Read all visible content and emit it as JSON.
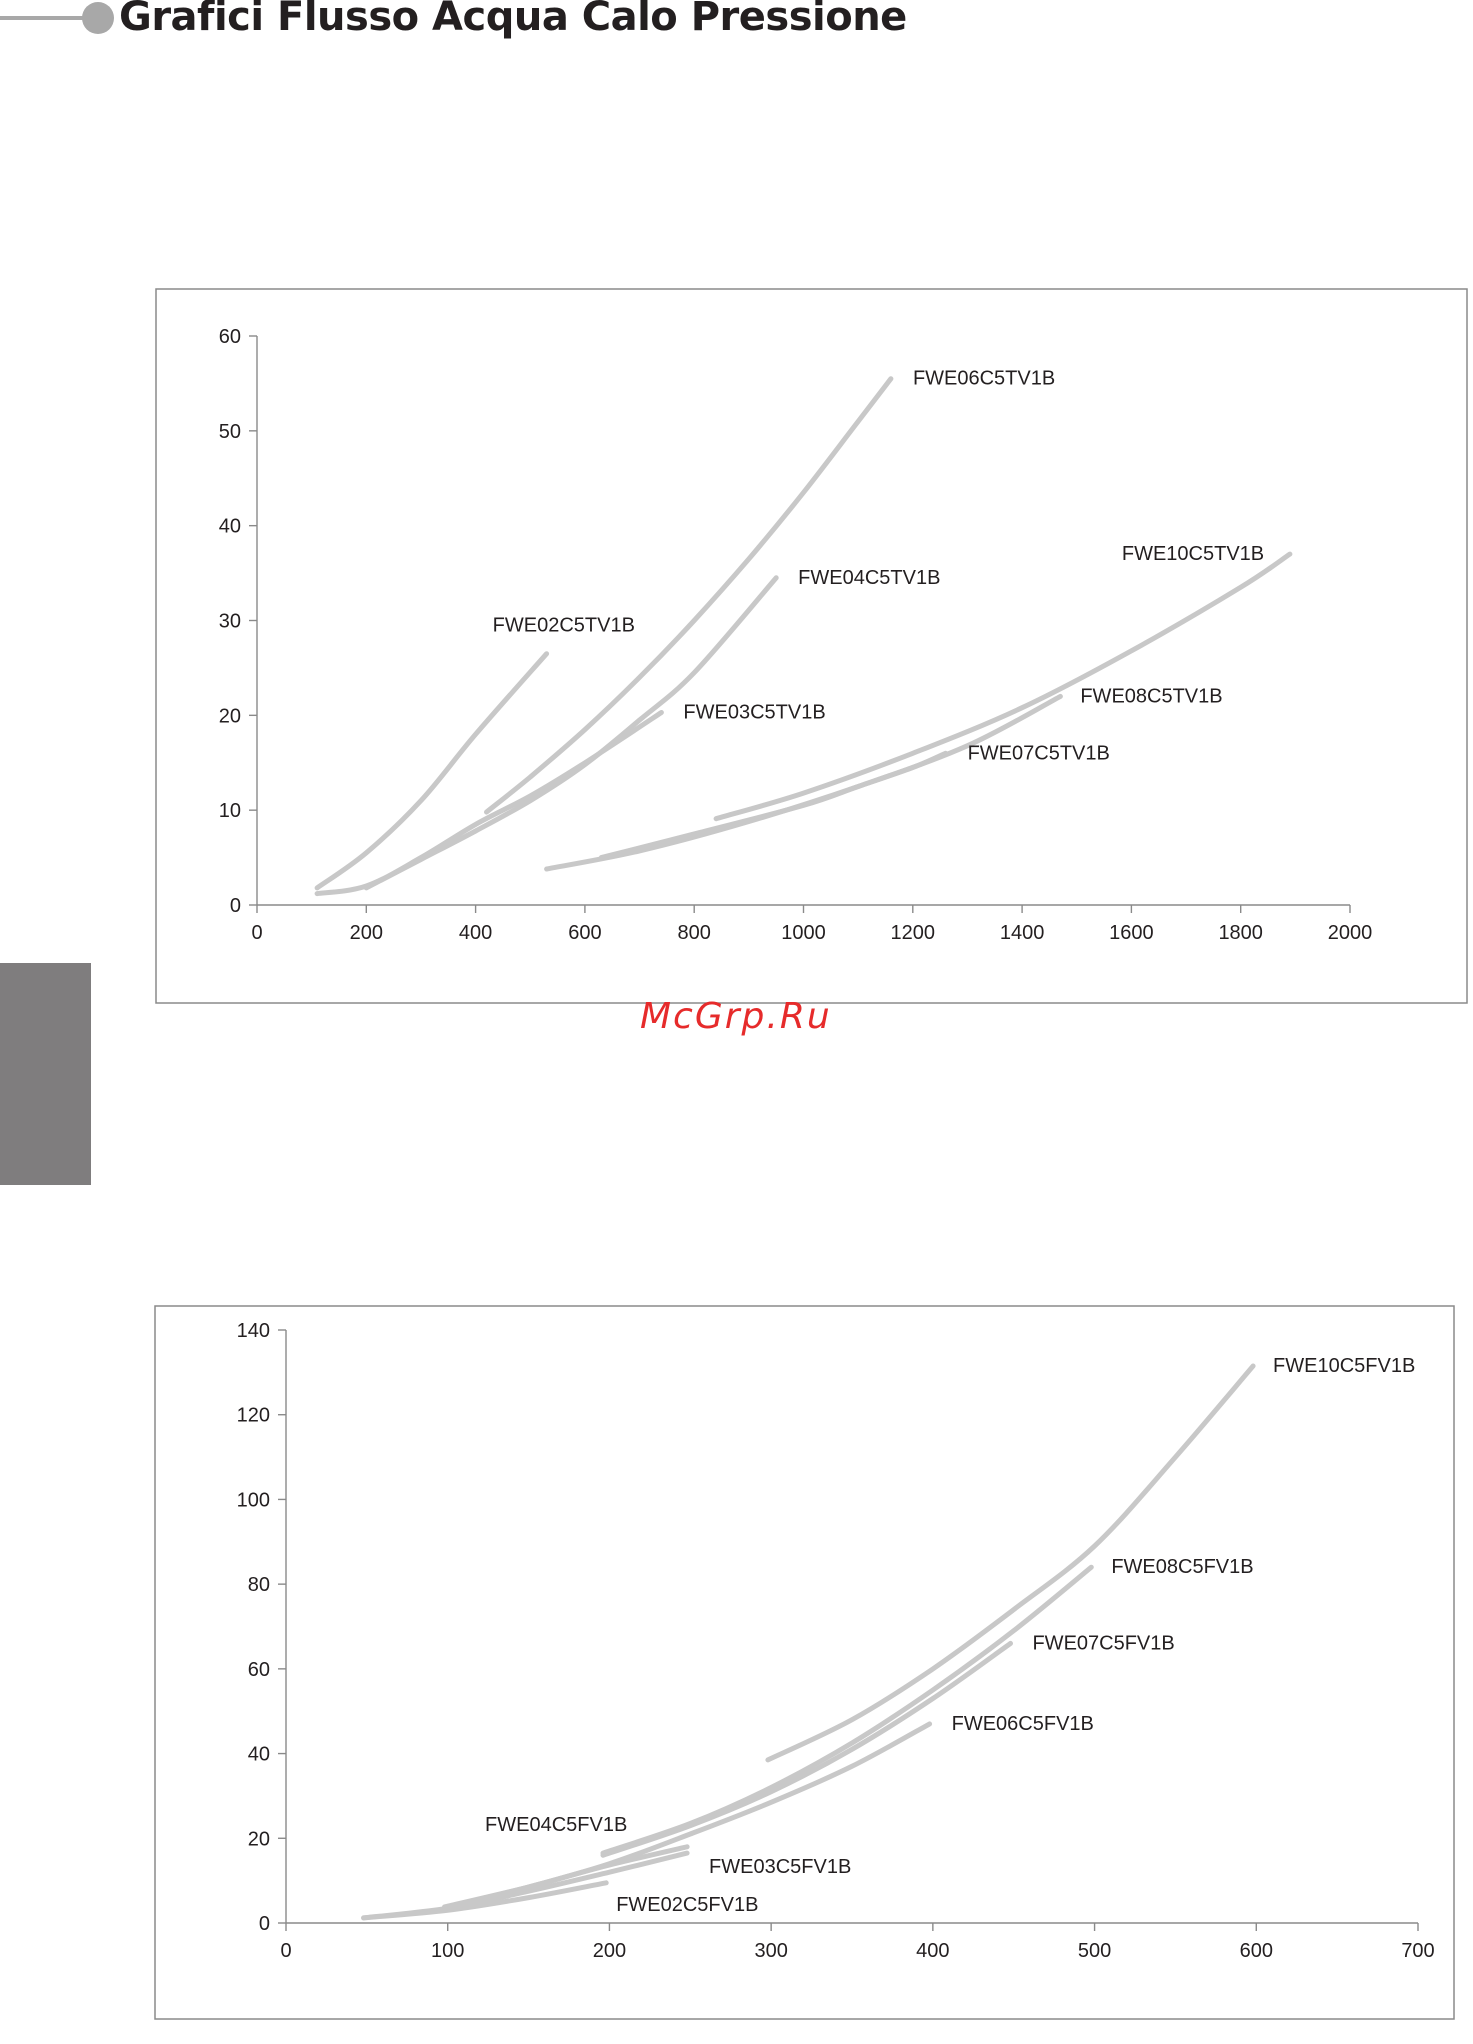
{
  "header": {
    "title": "Grafici Flusso Acqua Calo Pressione"
  },
  "watermark": "McGrp.Ru",
  "chart_data": [
    {
      "type": "line",
      "title": "",
      "xlabel": "",
      "ylabel": "",
      "xlim": [
        0,
        2000
      ],
      "ylim": [
        0,
        60
      ],
      "xticks": [
        0,
        200,
        400,
        600,
        800,
        1000,
        1200,
        1400,
        1600,
        1800,
        2000
      ],
      "yticks": [
        0,
        10,
        20,
        30,
        40,
        50,
        60
      ],
      "grid": false,
      "series": [
        {
          "name": "FWE02C5TV1B",
          "x": [
            110,
            200,
            300,
            400,
            530
          ],
          "y": [
            1.8,
            5.5,
            11,
            18,
            26.5
          ]
        },
        {
          "name": "FWE03C5TV1B",
          "x": [
            110,
            200,
            300,
            400,
            500,
            600,
            740
          ],
          "y": [
            1.2,
            2,
            5,
            8.5,
            11.5,
            15,
            20.3
          ]
        },
        {
          "name": "FWE04C5TV1B",
          "x": [
            200,
            300,
            400,
            500,
            600,
            700,
            800,
            950
          ],
          "y": [
            1.8,
            4.8,
            7.8,
            11,
            14.8,
            19.5,
            24.5,
            34.5
          ]
        },
        {
          "name": "FWE06C5TV1B",
          "x": [
            420,
            500,
            600,
            700,
            800,
            900,
            1000,
            1100,
            1160
          ],
          "y": [
            9.8,
            13.5,
            18.5,
            24,
            30,
            36.5,
            43.5,
            51,
            55.5
          ]
        },
        {
          "name": "FWE07C5TV1B",
          "x": [
            630,
            800,
            1000,
            1100,
            1200,
            1260
          ],
          "y": [
            5,
            7.5,
            10.5,
            12.5,
            14.5,
            16
          ]
        },
        {
          "name": "FWE08C5TV1B",
          "x": [
            530,
            700,
            900,
            1100,
            1300,
            1470
          ],
          "y": [
            3.8,
            5.7,
            8.8,
            12.5,
            16.8,
            22
          ]
        },
        {
          "name": "FWE10C5TV1B",
          "x": [
            840,
            1000,
            1200,
            1400,
            1600,
            1800,
            1890
          ],
          "y": [
            9.1,
            11.8,
            16,
            20.8,
            26.8,
            33.5,
            37
          ]
        }
      ]
    },
    {
      "type": "line",
      "title": "",
      "xlabel": "",
      "ylabel": "",
      "xlim": [
        0,
        700
      ],
      "ylim": [
        0,
        140
      ],
      "xticks": [
        0,
        100,
        200,
        300,
        400,
        500,
        600,
        700
      ],
      "yticks": [
        0,
        20,
        40,
        60,
        80,
        100,
        120,
        140
      ],
      "grid": false,
      "series": [
        {
          "name": "FWE02C5FV1B",
          "x": [
            48,
            100,
            150,
            198
          ],
          "y": [
            1.2,
            3,
            6,
            9.5
          ]
        },
        {
          "name": "FWE03C5FV1B",
          "x": [
            48,
            100,
            150,
            200,
            248
          ],
          "y": [
            1.2,
            3.5,
            7.5,
            12,
            16.5
          ]
        },
        {
          "name": "FWE04C5FV1B",
          "x": [
            98,
            150,
            198,
            248
          ],
          "y": [
            3.8,
            8.5,
            13.5,
            18
          ]
        },
        {
          "name": "FWE06C5FV1B",
          "x": [
            98,
            150,
            200,
            250,
            300,
            350,
            398
          ],
          "y": [
            3.5,
            8.5,
            14,
            21,
            28.5,
            37,
            47
          ]
        },
        {
          "name": "FWE07C5FV1B",
          "x": [
            196,
            250,
            300,
            350,
            400,
            448
          ],
          "y": [
            16,
            23,
            31,
            41,
            53,
            66
          ]
        },
        {
          "name": "FWE08C5FV1B",
          "x": [
            196,
            250,
            300,
            350,
            400,
            450,
            498
          ],
          "y": [
            16.5,
            23.5,
            32,
            42.5,
            55,
            69,
            84
          ]
        },
        {
          "name": "FWE10C5FV1B",
          "x": [
            298,
            350,
            400,
            450,
            500,
            550,
            598
          ],
          "y": [
            38.5,
            48,
            60,
            74,
            89,
            110,
            131.5
          ]
        }
      ]
    }
  ]
}
